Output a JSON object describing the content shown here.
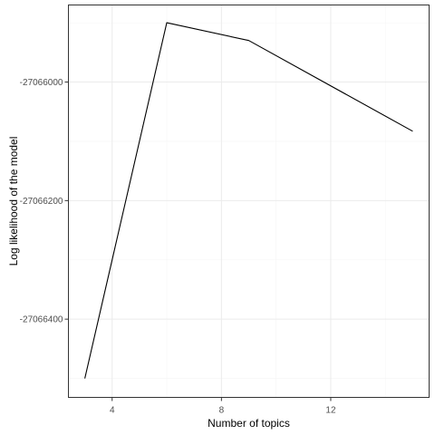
{
  "chart_data": {
    "type": "line",
    "title": "",
    "xlabel": "Number of topics",
    "ylabel": "Log likelihood of the model",
    "x": [
      3,
      6,
      9,
      15
    ],
    "series": [
      {
        "values": [
          -27066500,
          -27065900,
          -27065930,
          -27066083
        ]
      }
    ],
    "xlim": [
      2.4,
      15.6
    ],
    "ylim": [
      -27066532,
      -27065870
    ],
    "x_ticks": [
      4,
      8,
      12
    ],
    "x_tick_labels": [
      "4",
      "8",
      "12"
    ],
    "y_ticks": [
      -27066400,
      -27066200,
      -27066000
    ],
    "y_tick_labels": [
      "-27066400",
      "-27066200",
      "-27066000"
    ],
    "grid": true,
    "colors": {
      "line": "#000000",
      "panel_border": "#333333",
      "grid_major": "#ebebeb",
      "grid_minor": "#f5f5f5"
    }
  }
}
